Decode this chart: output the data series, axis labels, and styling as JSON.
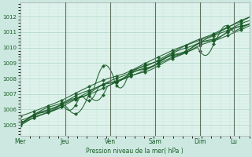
{
  "background_color": "#cce8e0",
  "plot_bg_color": "#dff2ec",
  "grid_major_color": "#9ecebe",
  "grid_minor_color": "#b8ddd4",
  "line_color": "#1a5c28",
  "ylabel_text": "Pression niveau de la mer( hPa )",
  "x_tick_labels": [
    "Mer",
    "Jeu",
    "Ven",
    "Sam",
    "Dim",
    "Lu"
  ],
  "x_tick_positions": [
    0,
    0.333,
    0.667,
    1.0,
    1.333,
    1.583
  ],
  "ylim": [
    1004.3,
    1012.9
  ],
  "yticks": [
    1005,
    1006,
    1007,
    1008,
    1009,
    1010,
    1011,
    1012
  ],
  "total_points": 200,
  "figsize": [
    3.2,
    2.0
  ],
  "dpi": 100
}
